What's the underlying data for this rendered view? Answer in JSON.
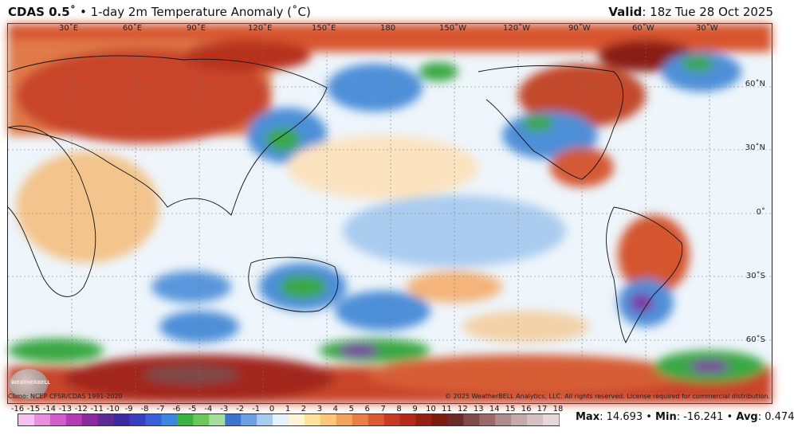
{
  "header": {
    "product": "CDAS 0.5˚",
    "separator": " • ",
    "title": "1-day 2m Temperature Anomaly (˚C)",
    "valid_label": "Valid",
    "valid_value": ": 18z Tue 28 Oct 2025"
  },
  "map": {
    "lon_labels": [
      "30˚E",
      "60˚E",
      "90˚E",
      "120˚E",
      "150˚E",
      "180",
      "150˚W",
      "120˚W",
      "90˚W",
      "60˚W",
      "30˚W"
    ],
    "lat_labels": [
      "60˚N",
      "30˚N",
      "0˚",
      "30˚S",
      "60˚S"
    ]
  },
  "footer": {
    "climo": "Climo: NCEP CFSR/CDAS 1991-2020",
    "copyright": "© 2025 WeatherBELL Analytics, LLC. All rights reserved. License required for commercial distribution.",
    "logo_text": "WEATHERBELL"
  },
  "colorbar": {
    "labels": [
      "-16",
      "-15",
      "-14",
      "-13",
      "-12",
      "-11",
      "-10",
      "-9",
      "-8",
      "-7",
      "-6",
      "-5",
      "-4",
      "-3",
      "-2",
      "-1",
      "0",
      "1",
      "2",
      "3",
      "4",
      "5",
      "6",
      "7",
      "8",
      "9",
      "10",
      "11",
      "12",
      "13",
      "14",
      "15",
      "16",
      "17",
      "18"
    ],
    "colors": [
      "#f7c0f0",
      "#e98fe0",
      "#d55ccd",
      "#b43bb4",
      "#8a2a9e",
      "#5e2a94",
      "#3b2aa0",
      "#3a3fc0",
      "#3b5fd8",
      "#3a86e0",
      "#3bb23f",
      "#6cc85b",
      "#a6dea0",
      "#3f74cc",
      "#6da0e0",
      "#a8cbf0",
      "#e6f2fb",
      "#fff4d6",
      "#ffe39a",
      "#fcc779",
      "#f5a35c",
      "#ec7d46",
      "#de5a32",
      "#c93a22",
      "#b22b1c",
      "#962013",
      "#7a1a10",
      "#6b2b2a",
      "#7e4a4a",
      "#9a6a6a",
      "#b08d8d",
      "#c4aaaa",
      "#d6c2c2",
      "#e6d8d8"
    ]
  },
  "stats": {
    "max_label": "Max",
    "max_value": ": 14.693",
    "min_label": "Min",
    "min_value": ": -16.241",
    "avg_label": "Avg",
    "avg_value": ": 0.474",
    "sep": " • "
  }
}
